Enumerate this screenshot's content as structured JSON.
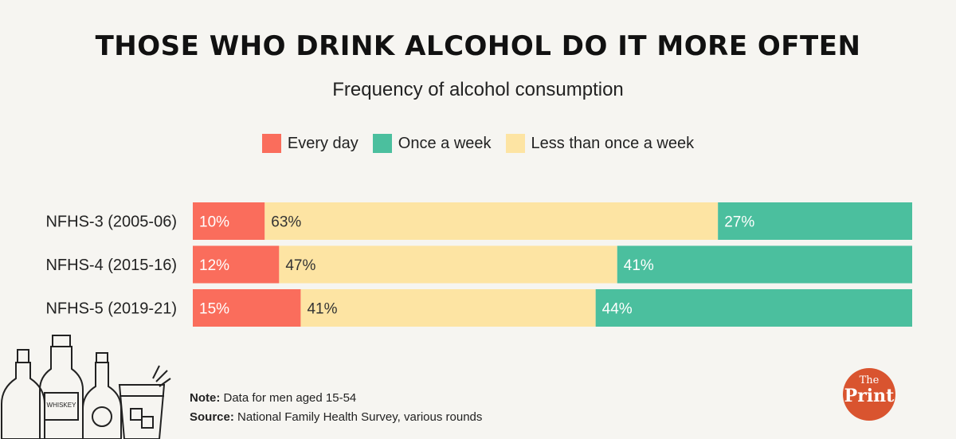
{
  "title": "THOSE WHO DRINK ALCOHOL DO IT MORE OFTEN",
  "subtitle": "Frequency of alcohol consumption",
  "legend": [
    {
      "label": "Every day",
      "color": "#fa6d5c"
    },
    {
      "label": "Once a week",
      "color": "#4bbf9e"
    },
    {
      "label": "Less than once a week",
      "color": "#fde4a3"
    }
  ],
  "note": {
    "note_label": "Note:",
    "note_text": "Data for men aged 15-54",
    "source_label": "Source:",
    "source_text": "National Family Health Survey, various rounds"
  },
  "logo": {
    "the": "The",
    "print": "Print"
  },
  "chart_data": {
    "type": "bar",
    "orientation": "horizontal",
    "stacked": true,
    "categories": [
      "NFHS-3 (2005-06)",
      "NFHS-4 (2015-16)",
      "NFHS-5 (2019-21)"
    ],
    "series": [
      {
        "name": "Every day",
        "values": [
          10,
          12,
          15
        ],
        "color": "#fa6d5c"
      },
      {
        "name": "Less than once a week",
        "values": [
          63,
          47,
          41
        ],
        "color": "#fde4a3"
      },
      {
        "name": "Once a week",
        "values": [
          27,
          41,
          44
        ],
        "color": "#4bbf9e"
      }
    ],
    "value_suffix": "%",
    "xlim": [
      0,
      100
    ],
    "legend": "top-center"
  }
}
